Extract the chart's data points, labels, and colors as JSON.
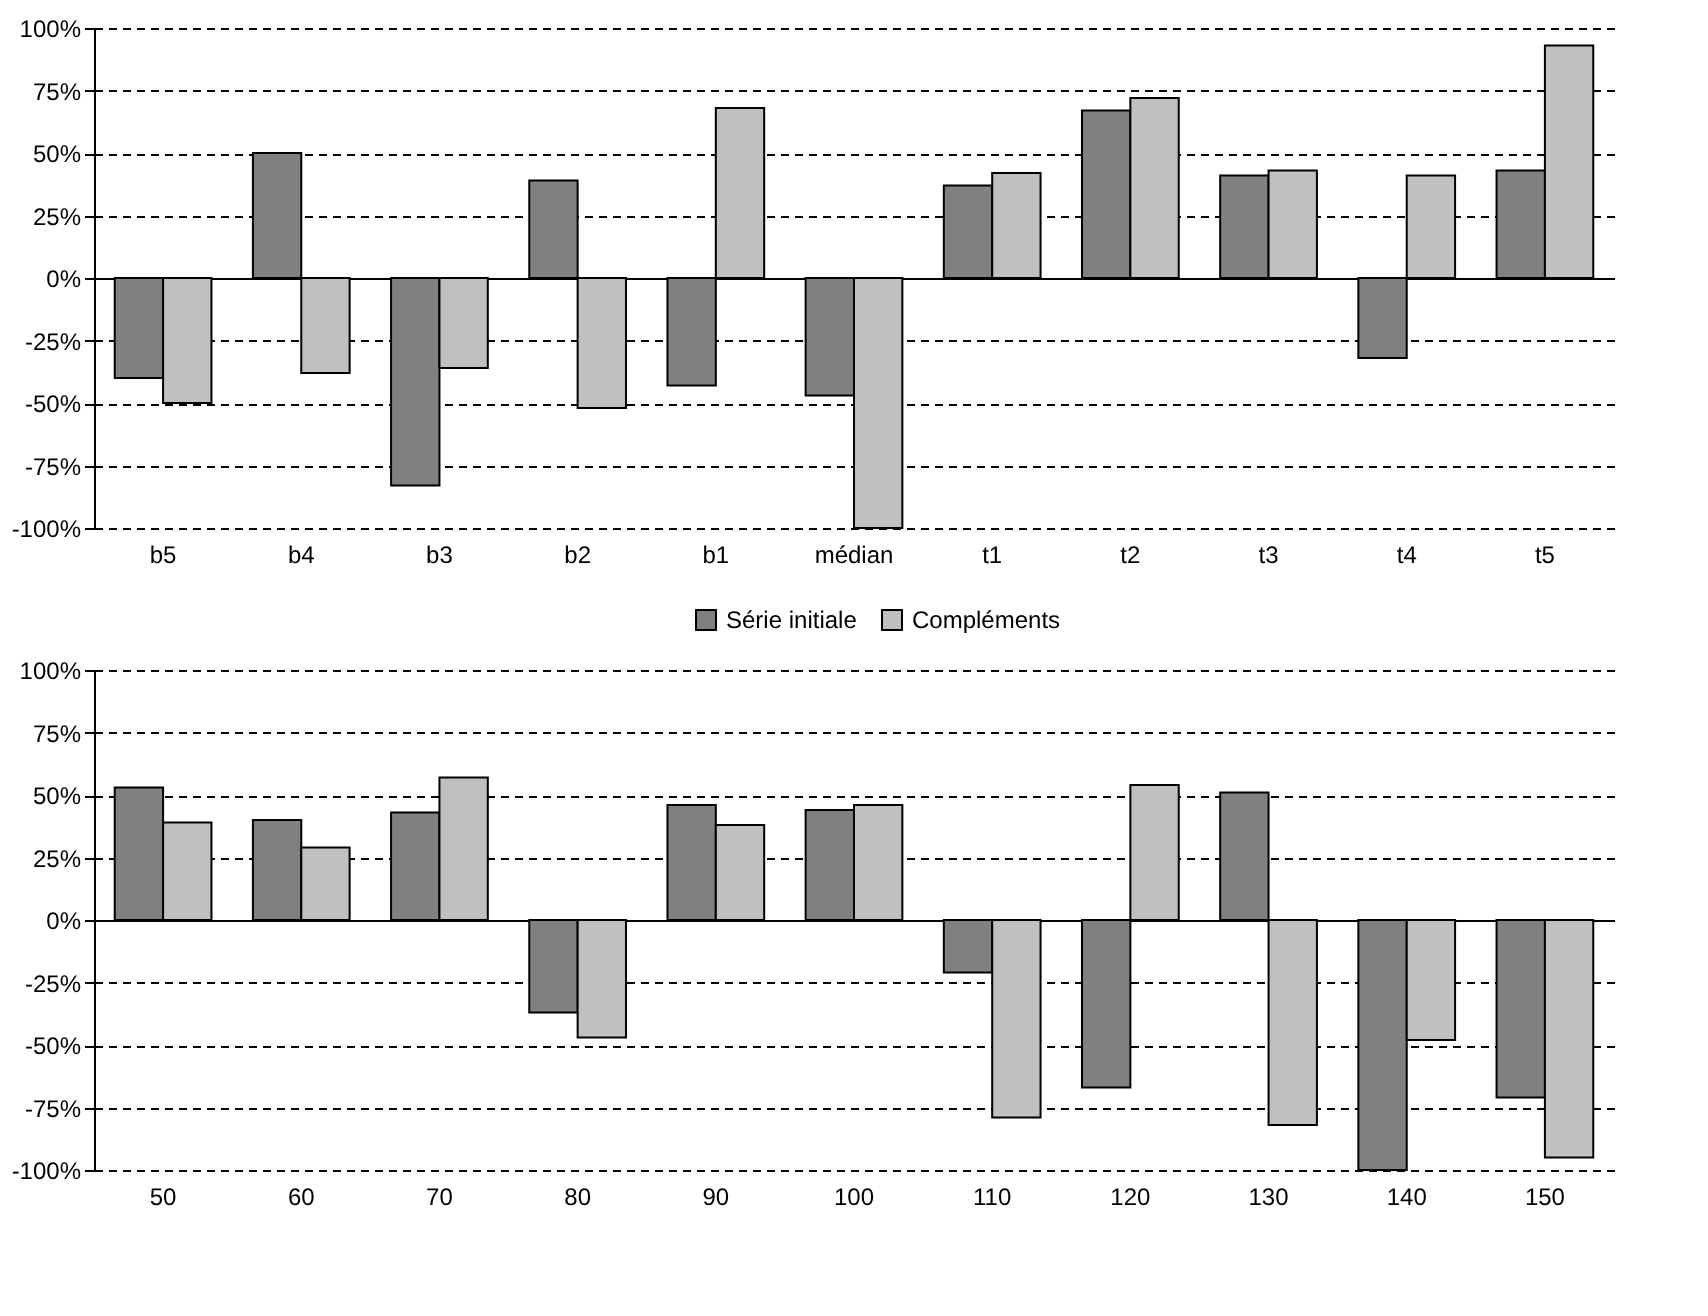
{
  "chart_data": [
    {
      "type": "bar",
      "categories": [
        "b5",
        "b4",
        "b3",
        "b2",
        "b1",
        "médian",
        "t1",
        "t2",
        "t3",
        "t4",
        "t5"
      ],
      "series": [
        {
          "name": "Série initiale",
          "color": "#808080",
          "values": [
            -40,
            50,
            -83,
            39,
            -43,
            -47,
            37,
            67,
            41,
            -32,
            43
          ]
        },
        {
          "name": "Compléments",
          "color": "#c0c0c0",
          "values": [
            -50,
            -38,
            -36,
            -52,
            68,
            -100,
            42,
            72,
            43,
            41,
            93
          ]
        }
      ],
      "ylim": [
        -100,
        100
      ],
      "yticks": [
        {
          "value": -100,
          "label": "-100%"
        },
        {
          "value": -75,
          "label": "-75%"
        },
        {
          "value": -50,
          "label": "-50%"
        },
        {
          "value": -25,
          "label": "-25%"
        },
        {
          "value": 0,
          "label": "0%"
        },
        {
          "value": 25,
          "label": "25%"
        },
        {
          "value": 50,
          "label": "50%"
        },
        {
          "value": 75,
          "label": "75%"
        },
        {
          "value": 100,
          "label": "100%"
        }
      ],
      "grid": "y",
      "legend": "bottom"
    },
    {
      "type": "bar",
      "categories": [
        "50",
        "60",
        "70",
        "80",
        "90",
        "100",
        "110",
        "120",
        "130",
        "140",
        "150"
      ],
      "series": [
        {
          "color": "#808080",
          "values": [
            53,
            40,
            43,
            -37,
            46,
            44,
            -21,
            -67,
            51,
            -100,
            -71
          ]
        },
        {
          "color": "#c0c0c0",
          "values": [
            39,
            29,
            57,
            -47,
            38,
            46,
            -79,
            54,
            -82,
            -48,
            -95
          ]
        }
      ],
      "ylim": [
        -100,
        100
      ],
      "yticks": [
        {
          "value": -100,
          "label": "-100%"
        },
        {
          "value": -75,
          "label": "-75%"
        },
        {
          "value": -50,
          "label": "-50%"
        },
        {
          "value": -25,
          "label": "-25%"
        },
        {
          "value": 0,
          "label": "0%"
        },
        {
          "value": 25,
          "label": "25%"
        },
        {
          "value": 50,
          "label": "50%"
        },
        {
          "value": 75,
          "label": "75%"
        },
        {
          "value": 100,
          "label": "100%"
        }
      ],
      "grid": "y",
      "legend": false
    }
  ]
}
